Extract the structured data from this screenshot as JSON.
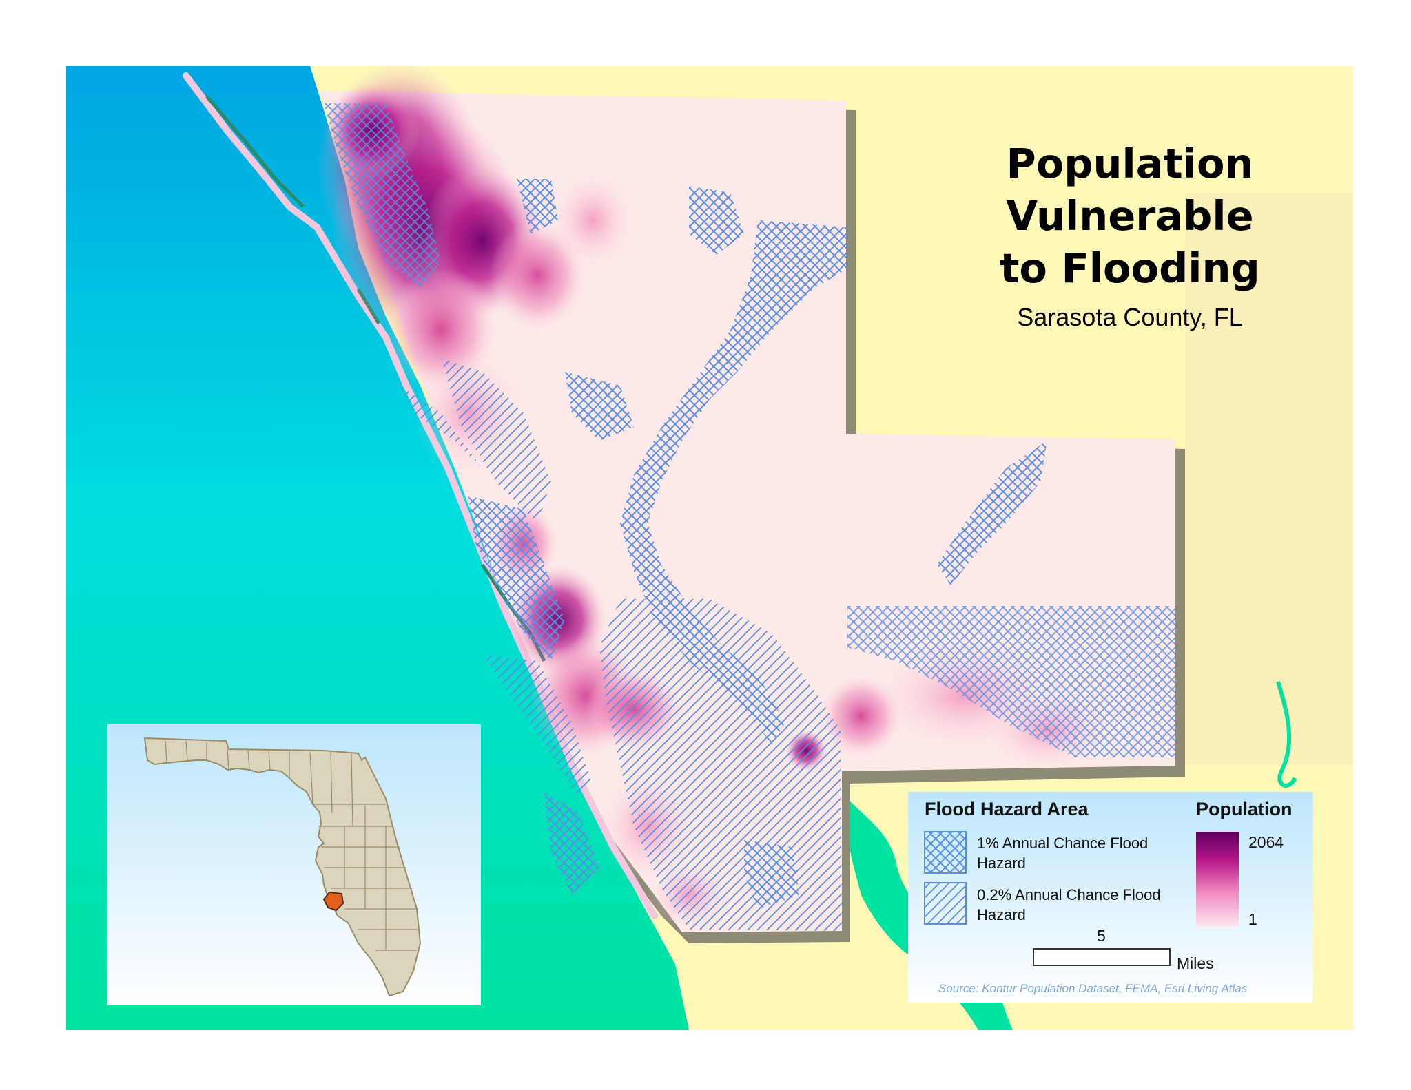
{
  "map": {
    "title_lines": [
      "Population",
      "Vulnerable",
      "to Flooding"
    ],
    "subtitle": "Sarasota County, FL",
    "colors": {
      "gulf_top": "#00a4e2",
      "gulf_mid": "#00dbe0",
      "gulf_bottom": "#00e3a0",
      "land": "#fdf8b8",
      "county_base": "#fde9e7",
      "pop_low": "#fbd3e3",
      "pop_high": "#5e0060",
      "hatch": "#5b8fe4",
      "shadow": "#8d8b76"
    }
  },
  "legend": {
    "flood_heading": "Flood Hazard Area",
    "flood_items": [
      {
        "label": "1% Annual Chance Flood Hazard",
        "pattern": "crosshatch"
      },
      {
        "label": "0.2% Annual Chance Flood Hazard",
        "pattern": "diagonal"
      }
    ],
    "population_heading": "Population",
    "population_max": "2064",
    "population_min": "1"
  },
  "scale_bar": {
    "value": "5",
    "unit": "Miles"
  },
  "source": "Source: Kontur Population Dataset, FEMA, Esri Living Atlas",
  "inset": {
    "state": "Florida",
    "highlight_color": "#e2601c"
  }
}
